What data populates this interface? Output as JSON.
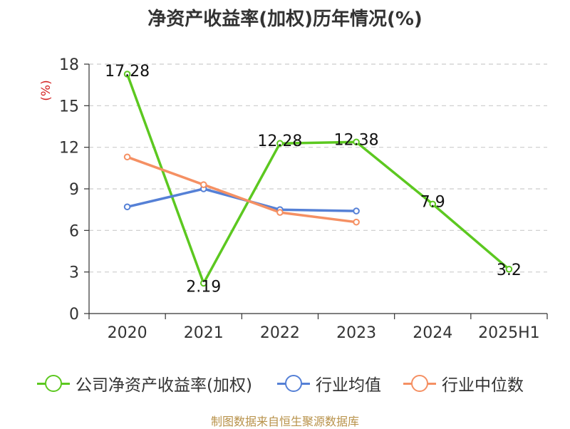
{
  "title": "净资产收益率(加权)历年情况(%)",
  "source": "制图数据来自恒生聚源数据库",
  "colors": {
    "company": "#5cc820",
    "industry_avg": "#5580d6",
    "industry_median": "#f59063",
    "grid": "#cccccc",
    "axis": "#333333",
    "unit": "#d42222"
  },
  "chart_data": {
    "type": "line",
    "title": "净资产收益率(加权)历年情况(%)",
    "xlabel": "",
    "ylabel": "(%)",
    "ylim": [
      0,
      18
    ],
    "yticks": [
      0,
      3,
      6,
      9,
      12,
      15,
      18
    ],
    "grid": true,
    "legend_position": "bottom",
    "categories": [
      "2020",
      "2021",
      "2022",
      "2023",
      "2024",
      "2025H1"
    ],
    "series": [
      {
        "name": "公司净资产收益率(加权)",
        "color": "#5cc820",
        "values": [
          17.28,
          2.19,
          12.28,
          12.38,
          7.9,
          3.2
        ],
        "labels": [
          "17.28",
          "2.19",
          "12.28",
          "12.38",
          "7.9",
          "3.2"
        ]
      },
      {
        "name": "行业均值",
        "color": "#5580d6",
        "values": [
          7.7,
          9.0,
          7.5,
          7.4,
          null,
          null
        ],
        "labels": []
      },
      {
        "name": "行业中位数",
        "color": "#f59063",
        "values": [
          11.3,
          9.3,
          7.3,
          6.6,
          null,
          null
        ],
        "labels": []
      }
    ]
  }
}
